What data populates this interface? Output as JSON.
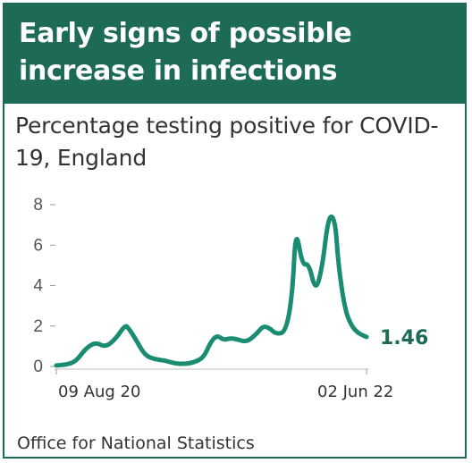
{
  "header": {
    "title": "Early signs of possible increase in infections"
  },
  "subtitle": "Percentage testing positive for COVID-19, England",
  "source": "Office for National Statistics",
  "colors": {
    "brand": "#1d6a57",
    "line": "#1a8c72"
  },
  "chart_data": {
    "type": "line",
    "title": "Percentage testing positive for COVID-19, England",
    "xlabel": "",
    "ylabel": "",
    "ylim": [
      0,
      8
    ],
    "yticks": [
      0,
      2,
      4,
      6,
      8
    ],
    "x_tick_labels": [
      "09 Aug 20",
      "02 Jun 22"
    ],
    "end_value_label": "1.46",
    "grid": false,
    "series": [
      {
        "x": [
          "2020-08-09",
          "2020-08-30",
          "2020-09-20",
          "2020-10-11",
          "2020-11-01",
          "2020-11-22",
          "2020-12-13",
          "2021-01-03",
          "2021-01-10",
          "2021-01-24",
          "2021-02-14",
          "2021-03-07",
          "2021-03-28",
          "2021-04-18",
          "2021-05-09",
          "2021-05-30",
          "2021-06-20",
          "2021-07-04",
          "2021-07-18",
          "2021-08-01",
          "2021-08-15",
          "2021-08-29",
          "2021-09-19",
          "2021-10-10",
          "2021-10-24",
          "2021-11-07",
          "2021-11-21",
          "2021-12-12",
          "2021-12-26",
          "2022-01-02",
          "2022-01-16",
          "2022-01-30",
          "2022-02-13",
          "2022-02-27",
          "2022-03-13",
          "2022-03-27",
          "2022-04-03",
          "2022-04-17",
          "2022-05-01",
          "2022-05-15",
          "2022-05-29",
          "2022-06-02"
        ],
        "values": [
          0.05,
          0.08,
          0.25,
          0.9,
          1.2,
          0.95,
          1.35,
          2.05,
          1.9,
          1.4,
          0.55,
          0.35,
          0.3,
          0.15,
          0.12,
          0.2,
          0.45,
          1.2,
          1.55,
          1.3,
          1.4,
          1.35,
          1.2,
          1.6,
          2.0,
          1.9,
          1.6,
          1.7,
          3.6,
          6.9,
          5.0,
          5.1,
          3.7,
          4.8,
          7.5,
          7.3,
          5.0,
          2.8,
          2.0,
          1.65,
          1.5,
          1.46
        ]
      }
    ]
  }
}
